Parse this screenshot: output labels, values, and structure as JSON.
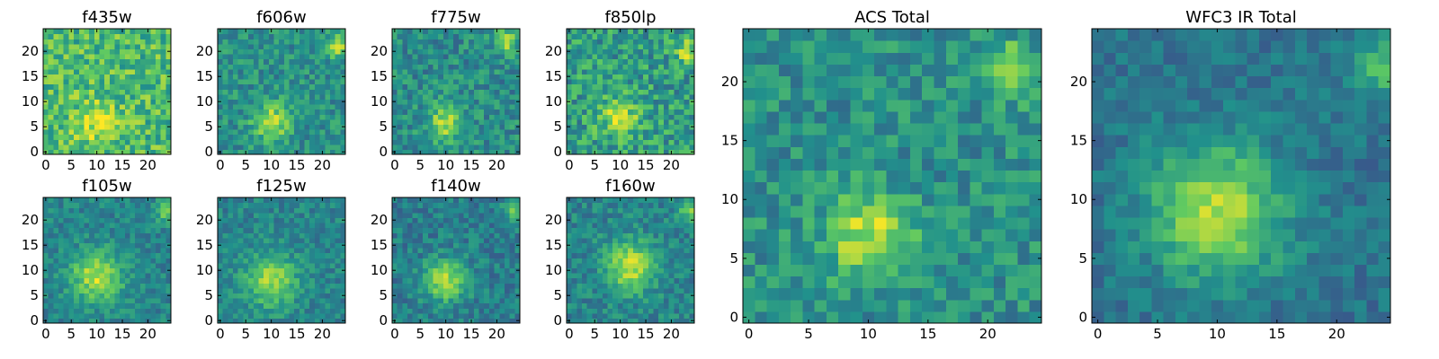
{
  "colormap": {
    "name": "viridis",
    "stops": [
      "#440154",
      "#3b528b",
      "#21918c",
      "#5ec962",
      "#fde725"
    ]
  },
  "chart_data": [
    {
      "type": "heatmap",
      "title": "f435w",
      "grid_size": 25,
      "x_ticks": [
        0,
        5,
        10,
        15,
        20
      ],
      "y_ticks": [
        0,
        5,
        10,
        15,
        20
      ],
      "source_peak": {
        "x": 10,
        "y": 6
      },
      "source_width": 3.0,
      "source_amplitude": 0.25,
      "background_level": 0.68,
      "noise_level": 0.2,
      "edge_hotspot": null
    },
    {
      "type": "heatmap",
      "title": "f606w",
      "grid_size": 25,
      "x_ticks": [
        0,
        5,
        10,
        15,
        20
      ],
      "y_ticks": [
        0,
        5,
        10,
        15,
        20
      ],
      "source_peak": {
        "x": 10,
        "y": 6
      },
      "source_width": 2.5,
      "source_amplitude": 0.4,
      "background_level": 0.5,
      "noise_level": 0.15,
      "edge_hotspot": {
        "x": 23,
        "y": 21
      }
    },
    {
      "type": "heatmap",
      "title": "f775w",
      "grid_size": 25,
      "x_ticks": [
        0,
        5,
        10,
        15,
        20
      ],
      "y_ticks": [
        0,
        5,
        10,
        15,
        20
      ],
      "source_peak": {
        "x": 10,
        "y": 6
      },
      "source_width": 2.5,
      "source_amplitude": 0.4,
      "background_level": 0.48,
      "noise_level": 0.16,
      "edge_hotspot": {
        "x": 22,
        "y": 22
      }
    },
    {
      "type": "heatmap",
      "title": "f850lp",
      "grid_size": 25,
      "x_ticks": [
        0,
        5,
        10,
        15,
        20
      ],
      "y_ticks": [
        0,
        5,
        10,
        15,
        20
      ],
      "source_peak": {
        "x": 10,
        "y": 7
      },
      "source_width": 3.0,
      "source_amplitude": 0.3,
      "background_level": 0.55,
      "noise_level": 0.2,
      "edge_hotspot": {
        "x": 23,
        "y": 20
      }
    },
    {
      "type": "heatmap",
      "title": "f105w",
      "grid_size": 25,
      "x_ticks": [
        0,
        5,
        10,
        15,
        20
      ],
      "y_ticks": [
        0,
        5,
        10,
        15,
        20
      ],
      "source_peak": {
        "x": 10,
        "y": 9
      },
      "source_width": 3.5,
      "source_amplitude": 0.45,
      "background_level": 0.45,
      "noise_level": 0.12,
      "edge_hotspot": {
        "x": 24,
        "y": 22
      }
    },
    {
      "type": "heatmap",
      "title": "f125w",
      "grid_size": 25,
      "x_ticks": [
        0,
        5,
        10,
        15,
        20
      ],
      "y_ticks": [
        0,
        5,
        10,
        15,
        20
      ],
      "source_peak": {
        "x": 10,
        "y": 8
      },
      "source_width": 3.5,
      "source_amplitude": 0.4,
      "background_level": 0.45,
      "noise_level": 0.12,
      "edge_hotspot": null
    },
    {
      "type": "heatmap",
      "title": "f140w",
      "grid_size": 25,
      "x_ticks": [
        0,
        5,
        10,
        15,
        20
      ],
      "y_ticks": [
        0,
        5,
        10,
        15,
        20
      ],
      "source_peak": {
        "x": 10,
        "y": 8
      },
      "source_width": 3.0,
      "source_amplitude": 0.45,
      "background_level": 0.42,
      "noise_level": 0.13,
      "edge_hotspot": {
        "x": 24,
        "y": 22
      }
    },
    {
      "type": "heatmap",
      "title": "f160w",
      "grid_size": 25,
      "x_ticks": [
        0,
        5,
        10,
        15,
        20
      ],
      "y_ticks": [
        0,
        5,
        10,
        15,
        20
      ],
      "source_peak": {
        "x": 12,
        "y": 11
      },
      "source_width": 3.5,
      "source_amplitude": 0.45,
      "background_level": 0.45,
      "noise_level": 0.13,
      "edge_hotspot": {
        "x": 24,
        "y": 22
      }
    },
    {
      "type": "heatmap",
      "title": "ACS Total",
      "grid_size": 25,
      "x_ticks": [
        0,
        5,
        10,
        15,
        20
      ],
      "y_ticks": [
        0,
        5,
        10,
        15,
        20
      ],
      "source_peak": {
        "x": 10,
        "y": 7
      },
      "source_width": 2.5,
      "source_amplitude": 0.4,
      "background_level": 0.5,
      "noise_level": 0.15,
      "edge_hotspot": {
        "x": 22,
        "y": 21
      }
    },
    {
      "type": "heatmap",
      "title": "WFC3 IR Total",
      "grid_size": 25,
      "x_ticks": [
        0,
        5,
        10,
        15,
        20
      ],
      "y_ticks": [
        0,
        5,
        10,
        15,
        20
      ],
      "source_peak": {
        "x": 10,
        "y": 9
      },
      "source_width": 4.0,
      "source_amplitude": 0.5,
      "background_level": 0.38,
      "noise_level": 0.1,
      "edge_hotspot": {
        "x": 24,
        "y": 21
      }
    }
  ]
}
